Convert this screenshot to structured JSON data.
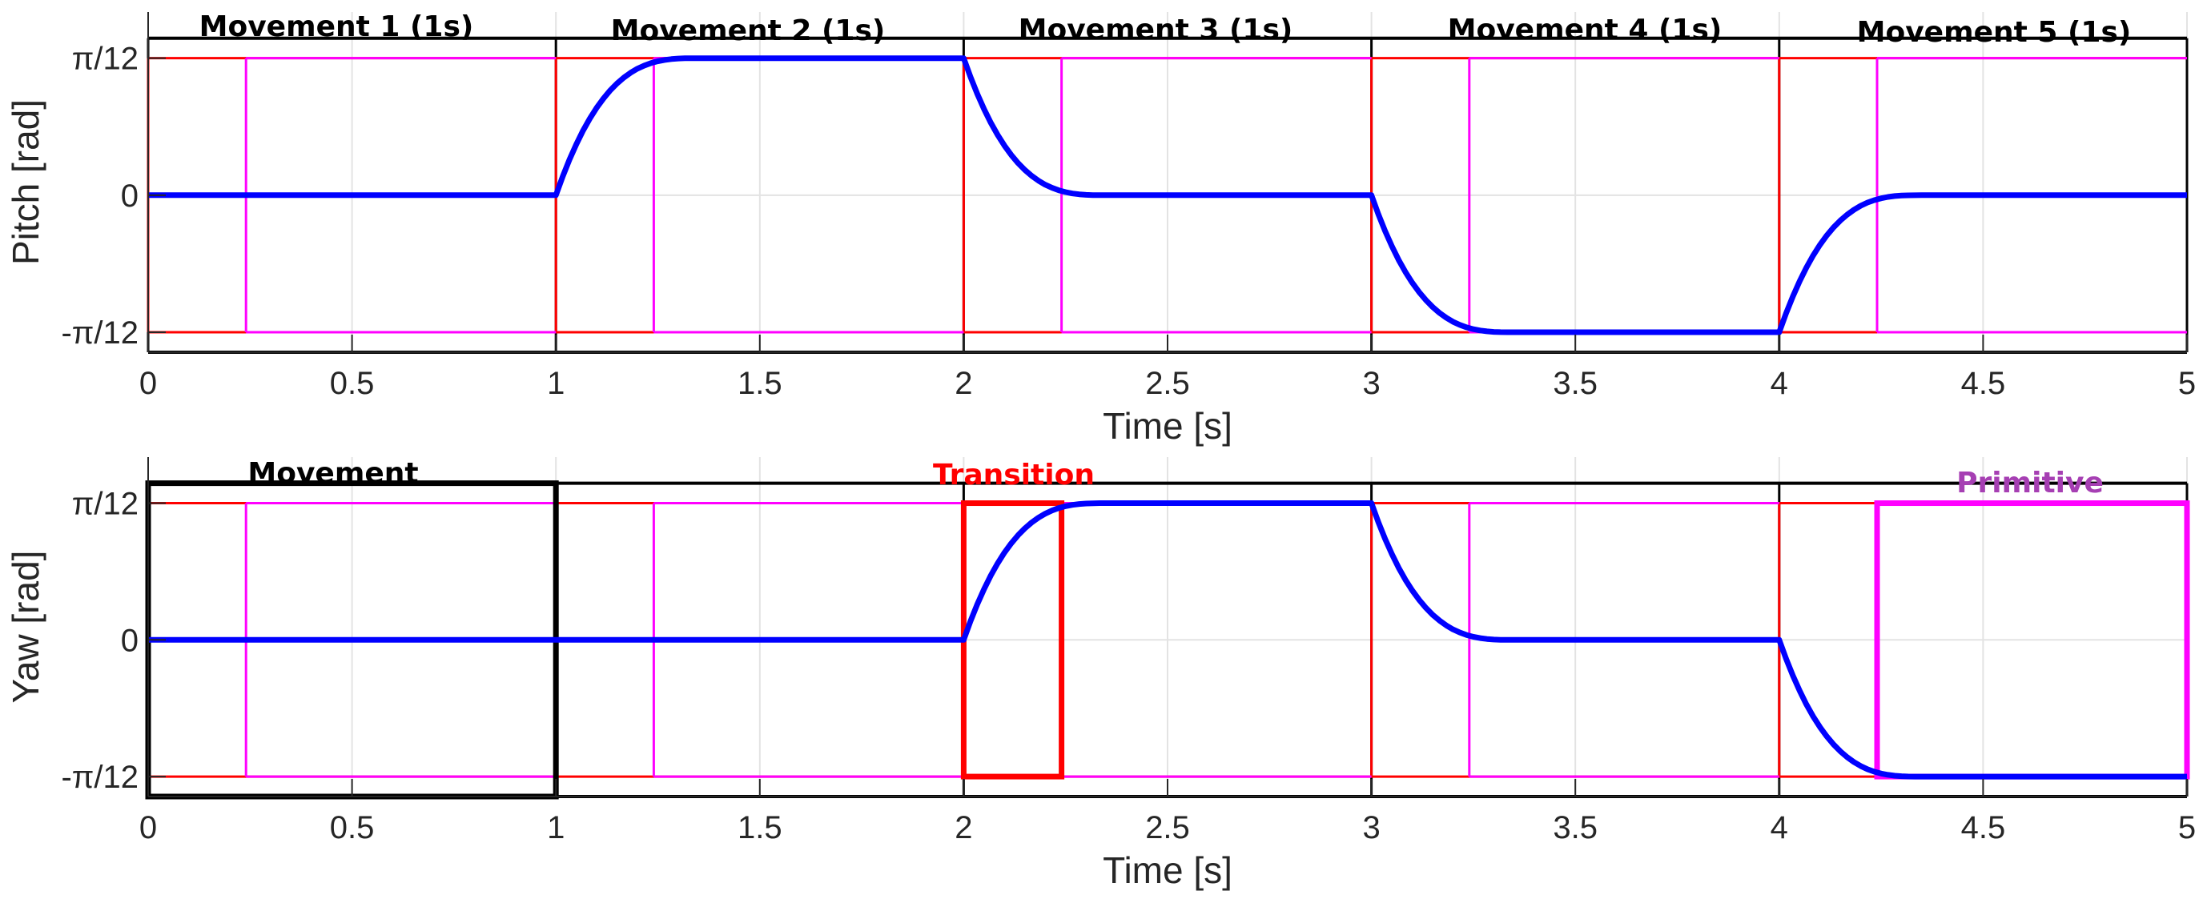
{
  "chart_data": [
    {
      "type": "line",
      "xlabel": "Time [s]",
      "ylabel": "Pitch [rad]",
      "xlim": [
        0,
        5
      ],
      "ylim": [
        -0.3,
        0.35
      ],
      "grid": true,
      "x_ticks": [
        {
          "value": 0,
          "label": "0"
        },
        {
          "value": 0.5,
          "label": "0.5"
        },
        {
          "value": 1,
          "label": "1"
        },
        {
          "value": 1.5,
          "label": "1.5"
        },
        {
          "value": 2,
          "label": "2"
        },
        {
          "value": 2.5,
          "label": "2.5"
        },
        {
          "value": 3,
          "label": "3"
        },
        {
          "value": 3.5,
          "label": "3.5"
        },
        {
          "value": 4,
          "label": "4"
        },
        {
          "value": 4.5,
          "label": "4.5"
        },
        {
          "value": 5,
          "label": "5"
        }
      ],
      "y_ticks": [
        {
          "value": 0.2618,
          "label": "π/12"
        },
        {
          "value": 0,
          "label": "0"
        },
        {
          "value": -0.2618,
          "label": "-π/12"
        }
      ],
      "annotations": [
        "Movement 1 (1s)",
        "Movement 2 (1s)",
        "Movement 3 (1s)",
        "Movement 4 (1s)",
        "Movement 5 (1s)"
      ],
      "movement_boundaries": [
        0,
        1,
        2,
        3,
        4,
        5
      ],
      "primitive_switch_times": [
        0.24,
        1.24,
        2.24,
        3.24,
        4.24
      ],
      "bound_limits": [
        0.3,
        -0.3
      ],
      "trajectory": [
        {
          "t_start": 0,
          "t_end": 1,
          "from": 0,
          "to": 0
        },
        {
          "t_start": 1,
          "t_end": 2,
          "from": 0,
          "to": 0.2618
        },
        {
          "t_start": 2,
          "t_end": 3,
          "from": 0.2618,
          "to": 0
        },
        {
          "t_start": 3,
          "t_end": 4,
          "from": 0,
          "to": -0.2618
        },
        {
          "t_start": 4,
          "t_end": 5,
          "from": -0.2618,
          "to": 0
        }
      ],
      "rise_time": 0.24,
      "colors": {
        "trajectory": "#0000ff",
        "transition": "#ff0000",
        "primitive": "#ff00ff",
        "movement": "#000000"
      }
    },
    {
      "type": "line",
      "xlabel": "Time [s]",
      "ylabel": "Yaw [rad]",
      "xlim": [
        0,
        5
      ],
      "ylim": [
        -0.3,
        0.35
      ],
      "grid": true,
      "x_ticks": [
        {
          "value": 0,
          "label": "0"
        },
        {
          "value": 0.5,
          "label": "0.5"
        },
        {
          "value": 1,
          "label": "1"
        },
        {
          "value": 1.5,
          "label": "1.5"
        },
        {
          "value": 2,
          "label": "2"
        },
        {
          "value": 2.5,
          "label": "2.5"
        },
        {
          "value": 3,
          "label": "3"
        },
        {
          "value": 3.5,
          "label": "3.5"
        },
        {
          "value": 4,
          "label": "4"
        },
        {
          "value": 4.5,
          "label": "4.5"
        },
        {
          "value": 5,
          "label": "5"
        }
      ],
      "y_ticks": [
        {
          "value": 0.2618,
          "label": "π/12"
        },
        {
          "value": 0,
          "label": "0"
        },
        {
          "value": -0.2618,
          "label": "-π/12"
        }
      ],
      "annotations": [
        "Movement",
        "Transition",
        "Primitive"
      ],
      "movement_boundaries": [
        0,
        1,
        2,
        3,
        4,
        5
      ],
      "primitive_switch_times": [
        0.24,
        1.24,
        2.24,
        3.24,
        4.24
      ],
      "bound_limits": [
        0.3,
        -0.3
      ],
      "trajectory": [
        {
          "t_start": 0,
          "t_end": 1,
          "from": 0,
          "to": 0
        },
        {
          "t_start": 1,
          "t_end": 2,
          "from": 0,
          "to": 0
        },
        {
          "t_start": 2,
          "t_end": 3,
          "from": 0,
          "to": 0.2618
        },
        {
          "t_start": 3,
          "t_end": 4,
          "from": 0.2618,
          "to": 0
        },
        {
          "t_start": 4,
          "t_end": 5,
          "from": 0,
          "to": -0.2618
        }
      ],
      "rise_time": 0.24,
      "highlight_boxes": [
        {
          "kind": "movement",
          "t_start": 0,
          "t_end": 1
        },
        {
          "kind": "transition",
          "t_start": 2,
          "t_end": 2.24
        },
        {
          "kind": "primitive",
          "t_start": 4.24,
          "t_end": 5
        }
      ],
      "colors": {
        "trajectory": "#0000ff",
        "transition": "#ff0000",
        "primitive": "#ff00ff",
        "movement": "#000000",
        "primitive_label": "#a63fb3"
      }
    }
  ]
}
